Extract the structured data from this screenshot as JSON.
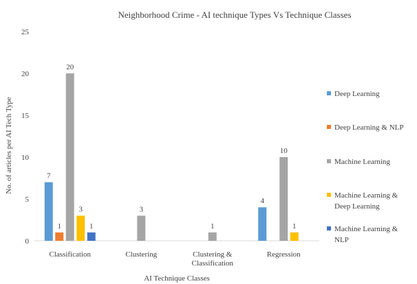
{
  "chart_data": {
    "type": "bar",
    "title": "Neighborhood Crime - AI technique Types Vs Technique Classes",
    "xlabel": "AI Technique Classes",
    "ylabel": "No. of articles per AI Tech Type",
    "ylim": [
      0,
      25
    ],
    "yticks": [
      "0",
      "5",
      "10",
      "15",
      "20",
      "25"
    ],
    "grid": false,
    "legend_position": "right",
    "categories": [
      [
        "Classification"
      ],
      [
        "Clustering"
      ],
      [
        "Clustering &",
        "Classification"
      ],
      [
        "Regression"
      ]
    ],
    "series": [
      {
        "name": [
          "Deep Learning"
        ],
        "color": "#5B9BD5",
        "values": [
          7,
          null,
          null,
          4
        ]
      },
      {
        "name": [
          "Deep Learning & NLP"
        ],
        "color": "#ED7D31",
        "values": [
          1,
          null,
          null,
          null
        ]
      },
      {
        "name": [
          "Machine Learning"
        ],
        "color": "#A5A5A5",
        "values": [
          20,
          3,
          1,
          10
        ]
      },
      {
        "name": [
          "Machine Learning &",
          "Deep Learning"
        ],
        "color": "#FFC000",
        "values": [
          3,
          null,
          null,
          1
        ]
      },
      {
        "name": [
          "Machine Learning &",
          "NLP"
        ],
        "color": "#4472C4",
        "values": [
          1,
          null,
          null,
          null
        ]
      }
    ]
  }
}
